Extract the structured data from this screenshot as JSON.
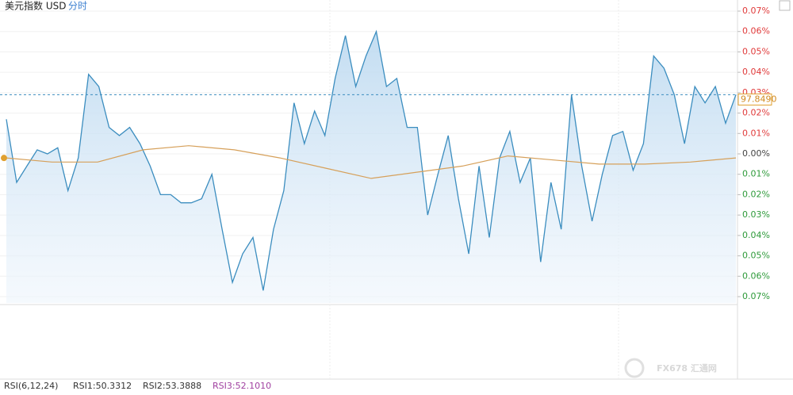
{
  "chart_data": {
    "type": "line",
    "title": "美元指数 USD",
    "subtitle": "分时",
    "series": [
      {
        "color": "#3b8dbf",
        "values": [
          0.017,
          -0.014,
          -0.006,
          0.002,
          0,
          0.003,
          -0.018,
          -0.002,
          0.039,
          0.033,
          0.013,
          0.009,
          0.013,
          0.005,
          -0.006,
          -0.02,
          -0.02,
          -0.024,
          -0.024,
          -0.022,
          -0.01,
          -0.037,
          -0.063,
          -0.049,
          -0.041,
          -0.067,
          -0.037,
          -0.018,
          0.025,
          0.005,
          0.021,
          0.009,
          0.037,
          0.058,
          0.033,
          0.048,
          0.06,
          0.033,
          0.037,
          0.013,
          0.013,
          -0.03,
          -0.01,
          0.009,
          -0.022,
          -0.049,
          -0.006,
          -0.041,
          -0.002,
          0.011,
          -0.014,
          -0.002,
          -0.053,
          -0.014,
          -0.037,
          0.029,
          -0.006,
          -0.033,
          -0.01,
          0.009,
          0.011,
          -0.008,
          0.005,
          0.048,
          0.042,
          0.029,
          0.005,
          0.033,
          0.025,
          0.033,
          0.015,
          0.029
        ]
      },
      {
        "color": "#d6a05a",
        "values": [
          -0.002,
          -0.004,
          -0.004,
          0.002,
          0.004,
          0.002,
          -0.002,
          -0.007,
          -0.012,
          -0.009,
          -0.006,
          -0.001,
          -0.003,
          -0.005,
          -0.005,
          -0.004,
          -0.002
        ]
      }
    ],
    "last_value_label": "97.8490",
    "ylim": [
      -0.07,
      0.07
    ],
    "yticks": [
      {
        "value": 0.07,
        "label": "0.07%"
      },
      {
        "value": 0.06,
        "label": "0.06%"
      },
      {
        "value": 0.05,
        "label": "0.05%"
      },
      {
        "value": 0.04,
        "label": "0.04%"
      },
      {
        "value": 0.03,
        "label": "0.03%"
      },
      {
        "value": 0.02,
        "label": "0.02%"
      },
      {
        "value": 0.01,
        "label": "0.01%"
      },
      {
        "value": 0,
        "label": "0.00%"
      },
      {
        "value": -0.01,
        "label": "0.01%"
      },
      {
        "value": -0.02,
        "label": "0.02%"
      },
      {
        "value": -0.03,
        "label": "0.03%"
      },
      {
        "value": -0.04,
        "label": "0.04%"
      },
      {
        "value": -0.05,
        "label": "0.05%"
      },
      {
        "value": -0.06,
        "label": "0.06%"
      },
      {
        "value": -0.07,
        "label": "0.07%"
      }
    ],
    "up_color": "#e03a3a",
    "down_color": "#2e9a3a",
    "zero_color": "#444444",
    "indicator": {
      "name": "RSI(6,12,24)",
      "values": [
        "RSI1:50.3312",
        "RSI2:53.3888",
        "RSI3:52.1010"
      ],
      "colors": [
        "#333333",
        "#333333",
        "#a040a0"
      ]
    },
    "watermark": "FX678 汇通网"
  }
}
